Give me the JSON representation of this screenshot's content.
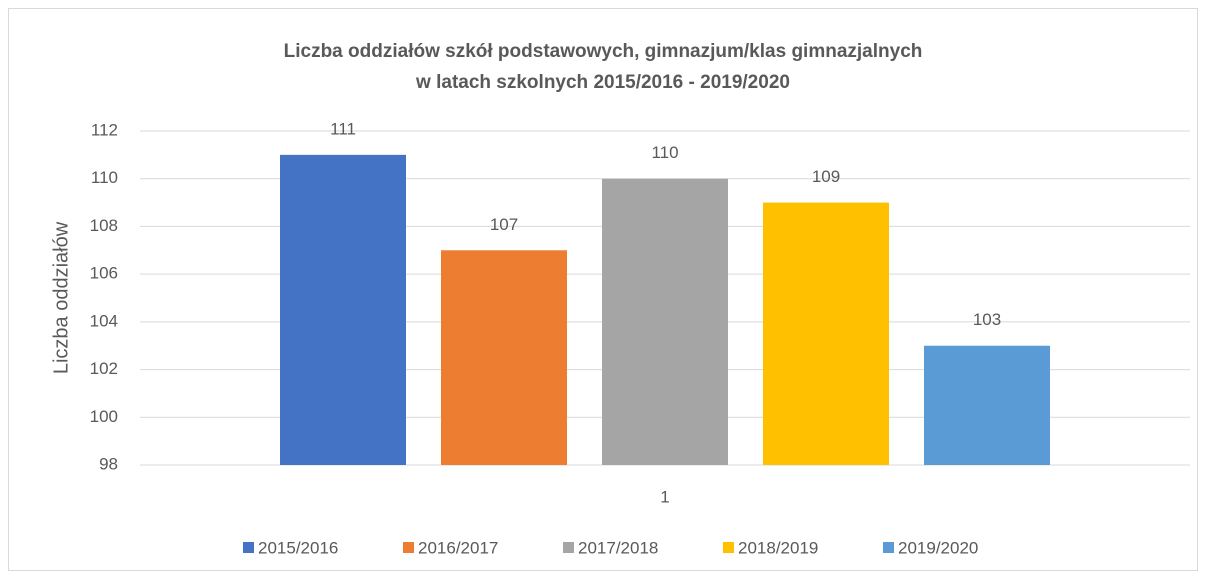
{
  "chart_data": {
    "type": "bar",
    "title": [
      "Liczba oddziałów szkół podstawowych, gimnazjum/klas gimnazjalnych",
      "w latach szkolnych 2015/2016 - 2019/2020"
    ],
    "ylabel": "Liczba oddziałów",
    "categories": [
      "1"
    ],
    "series": [
      {
        "name": "2015/2016",
        "color": "#4472c4",
        "values": [
          111
        ]
      },
      {
        "name": "2016/2017",
        "color": "#ed7d31",
        "values": [
          107
        ]
      },
      {
        "name": "2017/2018",
        "color": "#a5a5a5",
        "values": [
          110
        ]
      },
      {
        "name": "2018/2019",
        "color": "#ffc000",
        "values": [
          109
        ]
      },
      {
        "name": "2019/2020",
        "color": "#5b9bd5",
        "values": [
          103
        ]
      }
    ],
    "ylim": [
      98,
      112
    ],
    "yticks": [
      98,
      100,
      102,
      104,
      106,
      108,
      110,
      112
    ],
    "grid": true,
    "legend": "bottom"
  }
}
